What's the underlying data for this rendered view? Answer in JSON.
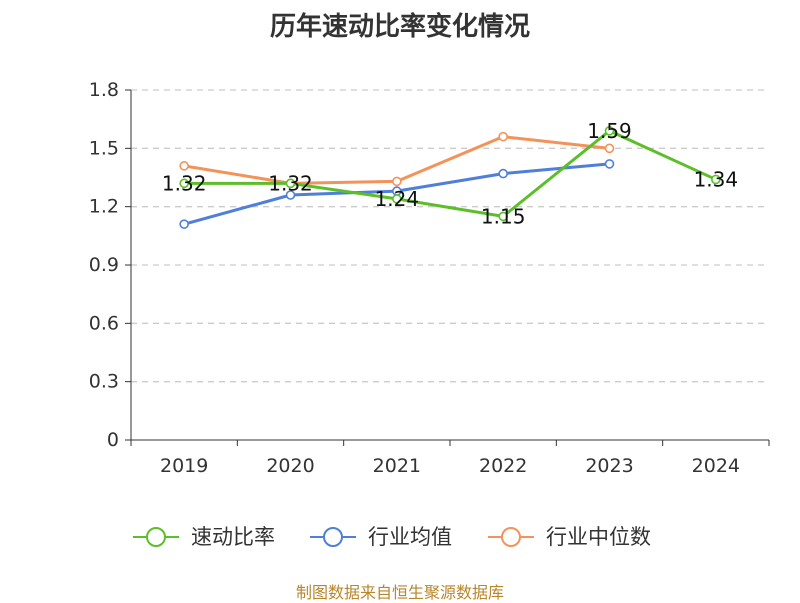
{
  "chart_data": {
    "type": "line",
    "title": "历年速动比率变化情况",
    "categories": [
      "2019",
      "2020",
      "2021",
      "2022",
      "2023",
      "2024"
    ],
    "ylim": [
      0,
      1.8
    ],
    "yticks": [
      0,
      0.3,
      0.6,
      0.9,
      1.2,
      1.5,
      1.8
    ],
    "ytick_labels": [
      "0",
      "0.3",
      "0.6",
      "0.9",
      "1.2",
      "1.5",
      "1.8"
    ],
    "grid": "horizontal dashed",
    "legend_position": "bottom",
    "series": [
      {
        "name": "速动比率",
        "color": "#5cbf2a",
        "values": [
          1.32,
          1.32,
          1.24,
          1.15,
          1.59,
          1.34
        ],
        "labels": [
          "1.32",
          "1.32",
          "1.24",
          "1.15",
          "1.59",
          "1.34"
        ]
      },
      {
        "name": "行业均值",
        "color": "#4f7fd9",
        "values": [
          1.11,
          1.26,
          1.28,
          1.37,
          1.42,
          null
        ]
      },
      {
        "name": "行业中位数",
        "color": "#f39359",
        "values": [
          1.41,
          1.32,
          1.33,
          1.56,
          1.5,
          null
        ]
      }
    ]
  },
  "footer": {
    "source": "制图数据来自恒生聚源数据库"
  }
}
